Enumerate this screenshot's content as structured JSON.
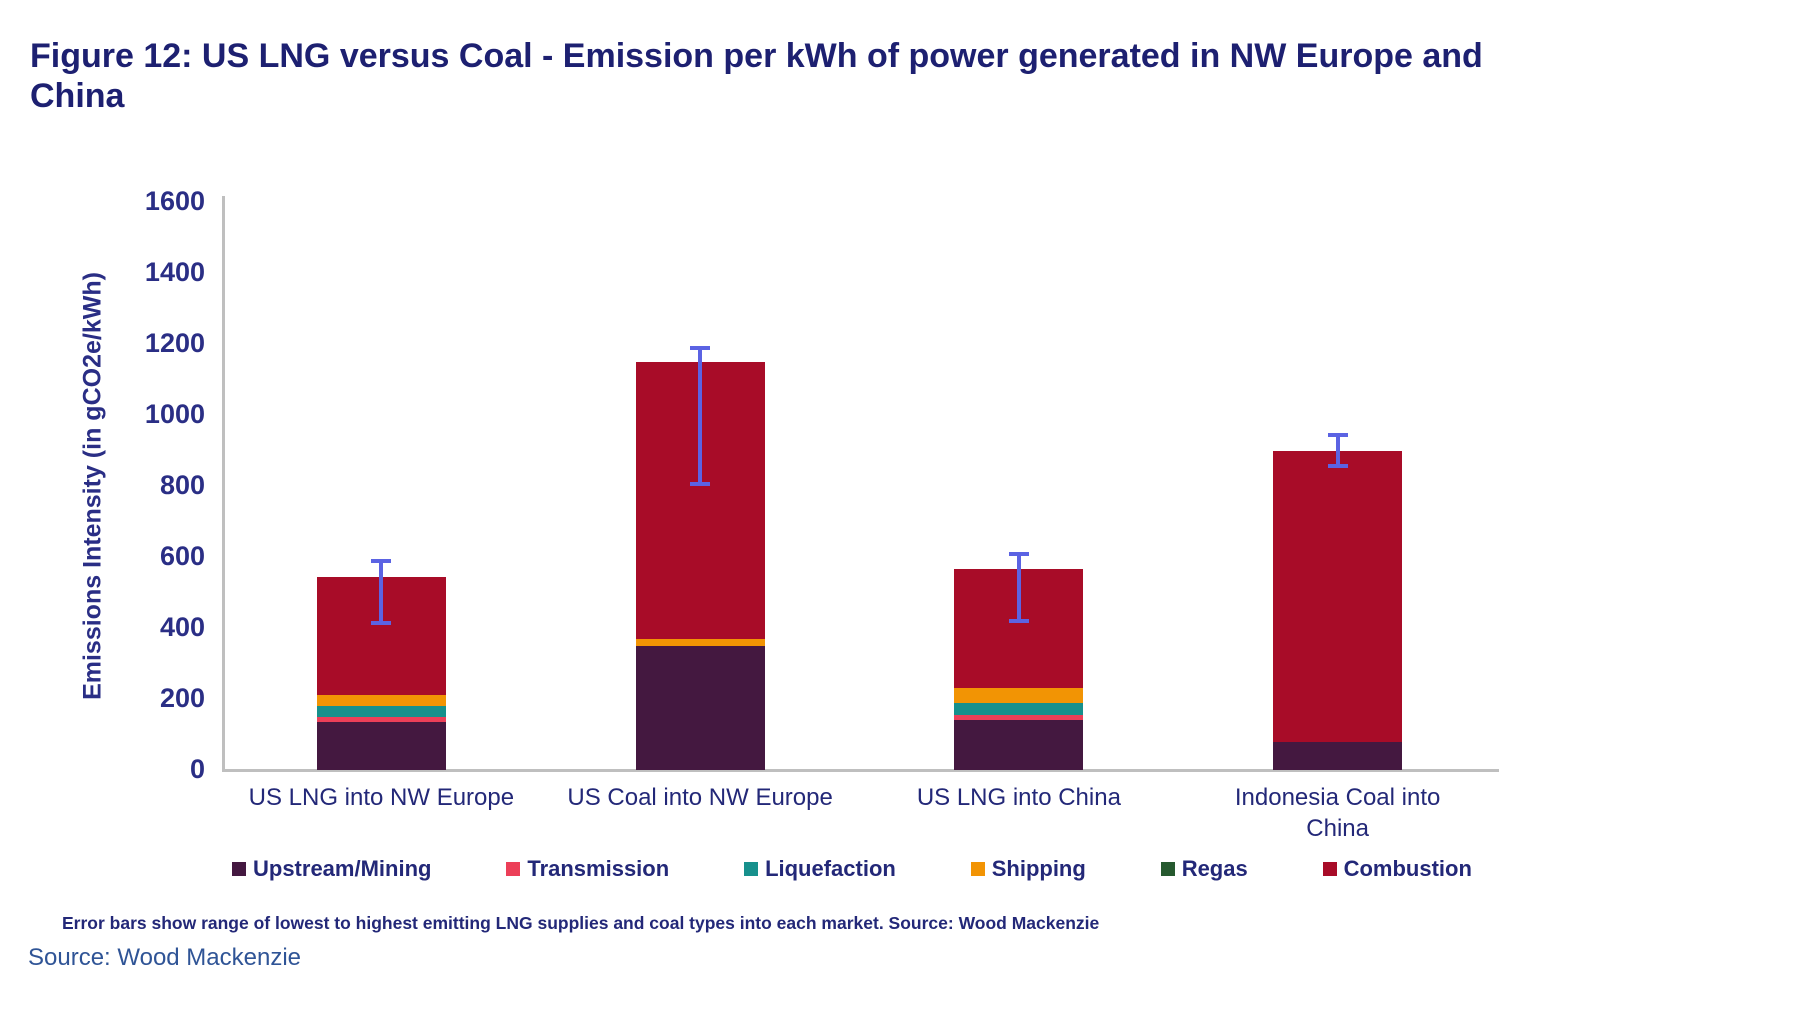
{
  "title": "Figure 12: US LNG versus Coal - Emission per kWh of power generated in NW Europe and China",
  "footnote": "Error bars show range of lowest to highest emitting LNG supplies and coal types into each market. Source: Wood Mackenzie",
  "source_line": "Source: Wood Mackenzie",
  "colors": {
    "title_navy": "#1d2071",
    "axis_text_navy": "#2a2e85",
    "axis_line_gray": "#bfbfbf",
    "error_bar_blue": "#5b63e3"
  },
  "chart_data": {
    "type": "bar",
    "stacked": true,
    "title": "Figure 12: US LNG versus Coal - Emission per kWh of power generated in NW Europe and China",
    "xlabel": "",
    "ylabel": "Emissions Intensity (in gCO2e/kWh)",
    "ylim": [
      0,
      1600
    ],
    "ytick_step": 200,
    "grid": false,
    "legend_position": "bottom",
    "categories": [
      "US LNG into NW Europe",
      "US Coal into NW Europe",
      "US LNG into China",
      "Indonesia Coal into China"
    ],
    "series": [
      {
        "name": "Upstream/Mining",
        "color": "#441840",
        "values": [
          135,
          350,
          140,
          80
        ]
      },
      {
        "name": "Transmission",
        "color": "#ec3f58",
        "values": [
          15,
          0,
          15,
          0
        ]
      },
      {
        "name": "Liquefaction",
        "color": "#17908c",
        "values": [
          30,
          0,
          35,
          0
        ]
      },
      {
        "name": "Shipping",
        "color": "#f29404",
        "values": [
          30,
          20,
          40,
          0
        ]
      },
      {
        "name": "Regas",
        "color": "#26592f",
        "values": [
          0,
          0,
          0,
          0
        ]
      },
      {
        "name": "Combustion",
        "color": "#a80c28",
        "values": [
          335,
          780,
          335,
          820
        ]
      }
    ],
    "totals": [
      545,
      1150,
      565,
      900
    ],
    "error_bars": [
      {
        "low": 415,
        "high": 595
      },
      {
        "low": 805,
        "high": 1195
      },
      {
        "low": 420,
        "high": 615
      },
      {
        "low": 855,
        "high": 950
      }
    ],
    "error_bar_note": "Error bars show range of lowest to highest emitting LNG supplies and coal types into each market."
  }
}
